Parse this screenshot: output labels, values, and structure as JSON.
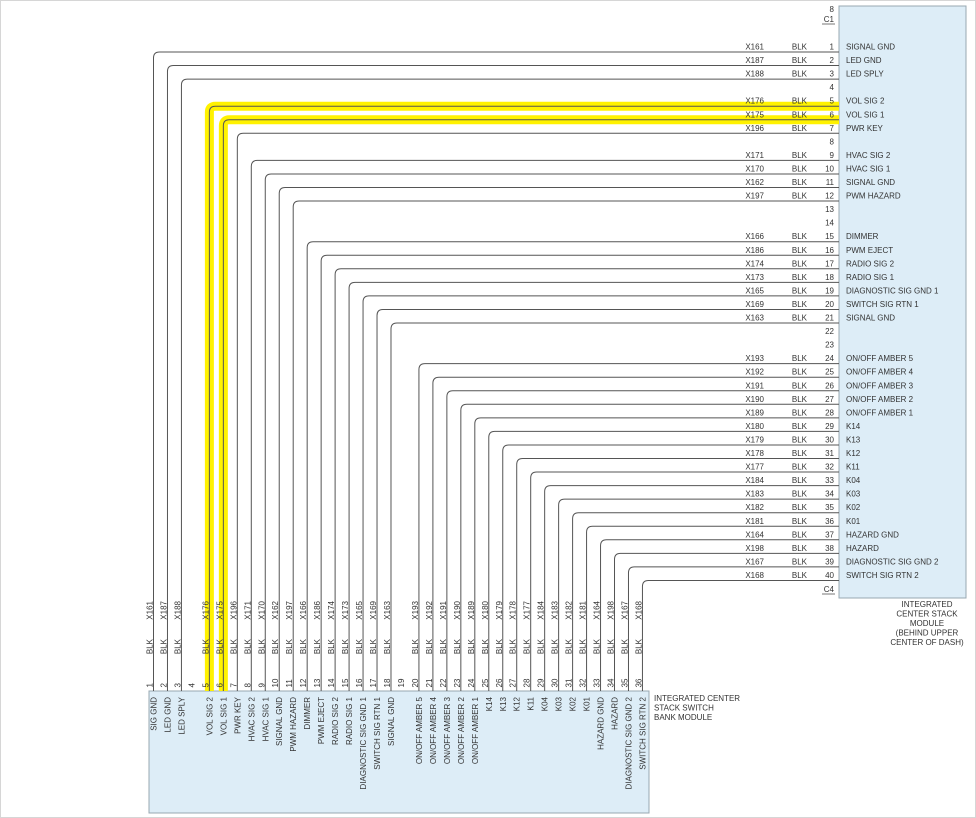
{
  "colors": {
    "module_fill": "#ddedf7",
    "module_border": "#98a8b2",
    "wire": "#555555",
    "highlight": "#fff200",
    "text": "#333333"
  },
  "right_module": {
    "top_pin_label": "8",
    "top_connector": "C1",
    "bottom_connector": "C4",
    "name_lines": [
      "INTEGRATED",
      "CENTER STACK",
      "MODULE",
      "(BEHIND UPPER",
      "CENTER OF DASH)"
    ],
    "pins": [
      {
        "pin": 1,
        "wire": "X161",
        "color": "BLK",
        "signal": "SIGNAL GND"
      },
      {
        "pin": 2,
        "wire": "X187",
        "color": "BLK",
        "signal": "LED GND"
      },
      {
        "pin": 3,
        "wire": "X188",
        "color": "BLK",
        "signal": "LED SPLY"
      },
      {
        "pin": 4
      },
      {
        "pin": 5,
        "wire": "X176",
        "color": "BLK",
        "signal": "VOL SIG 2"
      },
      {
        "pin": 6,
        "wire": "X175",
        "color": "BLK",
        "signal": "VOL SIG 1"
      },
      {
        "pin": 7,
        "wire": "X196",
        "color": "BLK",
        "signal": "PWR KEY"
      },
      {
        "pin": 8
      },
      {
        "pin": 9,
        "wire": "X171",
        "color": "BLK",
        "signal": "HVAC SIG 2"
      },
      {
        "pin": 10,
        "wire": "X170",
        "color": "BLK",
        "signal": "HVAC SIG 1"
      },
      {
        "pin": 11,
        "wire": "X162",
        "color": "BLK",
        "signal": "SIGNAL GND"
      },
      {
        "pin": 12,
        "wire": "X197",
        "color": "BLK",
        "signal": "PWM HAZARD"
      },
      {
        "pin": 13
      },
      {
        "pin": 14
      },
      {
        "pin": 15,
        "wire": "X166",
        "color": "BLK",
        "signal": "DIMMER"
      },
      {
        "pin": 16,
        "wire": "X186",
        "color": "BLK",
        "signal": "PWM EJECT"
      },
      {
        "pin": 17,
        "wire": "X174",
        "color": "BLK",
        "signal": "RADIO SIG 2"
      },
      {
        "pin": 18,
        "wire": "X173",
        "color": "BLK",
        "signal": "RADIO SIG 1"
      },
      {
        "pin": 19,
        "wire": "X165",
        "color": "BLK",
        "signal": "DIAGNOSTIC SIG GND 1"
      },
      {
        "pin": 20,
        "wire": "X169",
        "color": "BLK",
        "signal": "SWITCH SIG RTN 1"
      },
      {
        "pin": 21,
        "wire": "X163",
        "color": "BLK",
        "signal": "SIGNAL GND"
      },
      {
        "pin": 22
      },
      {
        "pin": 23
      },
      {
        "pin": 24,
        "wire": "X193",
        "color": "BLK",
        "signal": "ON/OFF AMBER 5"
      },
      {
        "pin": 25,
        "wire": "X192",
        "color": "BLK",
        "signal": "ON/OFF AMBER 4"
      },
      {
        "pin": 26,
        "wire": "X191",
        "color": "BLK",
        "signal": "ON/OFF AMBER 3"
      },
      {
        "pin": 27,
        "wire": "X190",
        "color": "BLK",
        "signal": "ON/OFF AMBER 2"
      },
      {
        "pin": 28,
        "wire": "X189",
        "color": "BLK",
        "signal": "ON/OFF AMBER 1"
      },
      {
        "pin": 29,
        "wire": "X180",
        "color": "BLK",
        "signal": "K14"
      },
      {
        "pin": 30,
        "wire": "X179",
        "color": "BLK",
        "signal": "K13"
      },
      {
        "pin": 31,
        "wire": "X178",
        "color": "BLK",
        "signal": "K12"
      },
      {
        "pin": 32,
        "wire": "X177",
        "color": "BLK",
        "signal": "K11"
      },
      {
        "pin": 33,
        "wire": "X184",
        "color": "BLK",
        "signal": "K04"
      },
      {
        "pin": 34,
        "wire": "X183",
        "color": "BLK",
        "signal": "K03"
      },
      {
        "pin": 35,
        "wire": "X182",
        "color": "BLK",
        "signal": "K02"
      },
      {
        "pin": 36,
        "wire": "X181",
        "color": "BLK",
        "signal": "K01"
      },
      {
        "pin": 37,
        "wire": "X164",
        "color": "BLK",
        "signal": "HAZARD GND"
      },
      {
        "pin": 38,
        "wire": "X198",
        "color": "BLK",
        "signal": "HAZARD"
      },
      {
        "pin": 39,
        "wire": "X167",
        "color": "BLK",
        "signal": "DIAGNOSTIC SIG GND 2"
      },
      {
        "pin": 40,
        "wire": "X168",
        "color": "BLK",
        "signal": "SWITCH SIG RTN 2"
      }
    ]
  },
  "bottom_module": {
    "name_lines": [
      "INTEGRATED CENTER",
      "STACK SWITCH",
      "BANK MODULE"
    ],
    "pins": [
      {
        "pin": 1,
        "wire": "X161",
        "color": "BLK",
        "signal": "SIG GND",
        "to_right_pin": 1
      },
      {
        "pin": 2,
        "wire": "X187",
        "color": "BLK",
        "signal": "LED GND",
        "to_right_pin": 2
      },
      {
        "pin": 3,
        "wire": "X188",
        "color": "BLK",
        "signal": "LED SPLY",
        "to_right_pin": 3
      },
      {
        "pin": 4
      },
      {
        "pin": 5,
        "wire": "X176",
        "color": "BLK",
        "signal": "VOL SIG 2",
        "to_right_pin": 5,
        "highlight": true
      },
      {
        "pin": 6,
        "wire": "X175",
        "color": "BLK",
        "signal": "VOL SIG 1",
        "to_right_pin": 6,
        "highlight": true
      },
      {
        "pin": 7,
        "wire": "X196",
        "color": "BLK",
        "signal": "PWR KEY",
        "to_right_pin": 7
      },
      {
        "pin": 8,
        "wire": "X171",
        "color": "BLK",
        "signal": "HVAC SIG 2",
        "to_right_pin": 9
      },
      {
        "pin": 9,
        "wire": "X170",
        "color": "BLK",
        "signal": "HVAC SIG 1",
        "to_right_pin": 10
      },
      {
        "pin": 10,
        "wire": "X162",
        "color": "BLK",
        "signal": "SIGNAL GND",
        "to_right_pin": 11
      },
      {
        "pin": 11,
        "wire": "X197",
        "color": "BLK",
        "signal": "PWM HAZARD",
        "to_right_pin": 12
      },
      {
        "pin": 12,
        "wire": "X166",
        "color": "BLK",
        "signal": "DIMMER",
        "to_right_pin": 15
      },
      {
        "pin": 13,
        "wire": "X186",
        "color": "BLK",
        "signal": "PWM EJECT",
        "to_right_pin": 16
      },
      {
        "pin": 14,
        "wire": "X174",
        "color": "BLK",
        "signal": "RADIO SIG 2",
        "to_right_pin": 17
      },
      {
        "pin": 15,
        "wire": "X173",
        "color": "BLK",
        "signal": "RADIO SIG 1",
        "to_right_pin": 18
      },
      {
        "pin": 16,
        "wire": "X165",
        "color": "BLK",
        "signal": "DIAGNOSTIC SIG GND 1",
        "to_right_pin": 19
      },
      {
        "pin": 17,
        "wire": "X169",
        "color": "BLK",
        "signal": "SWITCH SIG RTN 1",
        "to_right_pin": 20
      },
      {
        "pin": 18,
        "wire": "X163",
        "color": "BLK",
        "signal": "SIGNAL GND",
        "to_right_pin": 21
      },
      {
        "pin": 19
      },
      {
        "pin": 20,
        "wire": "X193",
        "color": "BLK",
        "signal": "ON/OFF AMBER 5",
        "to_right_pin": 24
      },
      {
        "pin": 21,
        "wire": "X192",
        "color": "BLK",
        "signal": "ON/OFF AMBER 4",
        "to_right_pin": 25
      },
      {
        "pin": 22,
        "wire": "X191",
        "color": "BLK",
        "signal": "ON/OFF AMBER 3",
        "to_right_pin": 26
      },
      {
        "pin": 23,
        "wire": "X190",
        "color": "BLK",
        "signal": "ON/OFF AMBER 2",
        "to_right_pin": 27
      },
      {
        "pin": 24,
        "wire": "X189",
        "color": "BLK",
        "signal": "ON/OFF AMBER 1",
        "to_right_pin": 28
      },
      {
        "pin": 25,
        "wire": "X180",
        "color": "BLK",
        "signal": "K14",
        "to_right_pin": 29
      },
      {
        "pin": 26,
        "wire": "X179",
        "color": "BLK",
        "signal": "K13",
        "to_right_pin": 30
      },
      {
        "pin": 27,
        "wire": "X178",
        "color": "BLK",
        "signal": "K12",
        "to_right_pin": 31
      },
      {
        "pin": 28,
        "wire": "X177",
        "color": "BLK",
        "signal": "K11",
        "to_right_pin": 32
      },
      {
        "pin": 29,
        "wire": "X184",
        "color": "BLK",
        "signal": "K04",
        "to_right_pin": 33
      },
      {
        "pin": 30,
        "wire": "X183",
        "color": "BLK",
        "signal": "K03",
        "to_right_pin": 34
      },
      {
        "pin": 31,
        "wire": "X182",
        "color": "BLK",
        "signal": "K02",
        "to_right_pin": 35
      },
      {
        "pin": 32,
        "wire": "X181",
        "color": "BLK",
        "signal": "K01",
        "to_right_pin": 36
      },
      {
        "pin": 33,
        "wire": "X164",
        "color": "BLK",
        "signal": "HAZARD GND",
        "to_right_pin": 37
      },
      {
        "pin": 34,
        "wire": "X198",
        "color": "BLK",
        "signal": "HAZARD",
        "to_right_pin": 38
      },
      {
        "pin": 35,
        "wire": "X167",
        "color": "BLK",
        "signal": "DIAGNOSTIC SIG GND 2",
        "to_right_pin": 39
      },
      {
        "pin": 36,
        "wire": "X168",
        "color": "BLK",
        "signal": "SWITCH SIG RTN 2",
        "to_right_pin": 40
      }
    ]
  }
}
